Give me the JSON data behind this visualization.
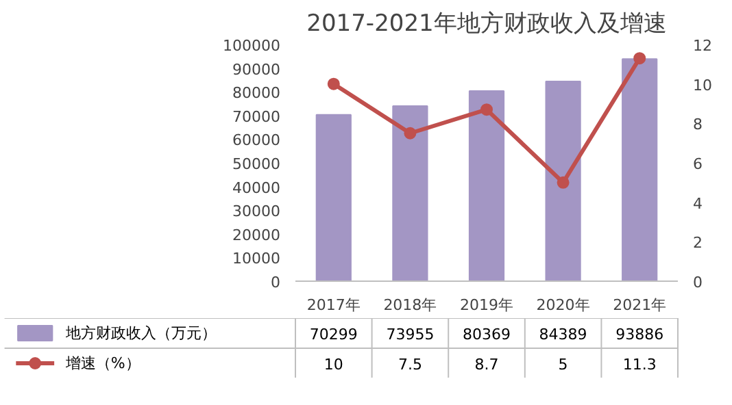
{
  "chart_data": {
    "type": "bar",
    "title": "2017-2021年地方财政收入及增速",
    "categories": [
      "2017年",
      "2018年",
      "2019年",
      "2020年",
      "2021年"
    ],
    "series": [
      {
        "name": "地方财政收入（万元）",
        "color": "#a396c4",
        "values": [
          70299,
          73955,
          80369,
          84389,
          93886
        ]
      },
      {
        "name": "增速（%）",
        "type": "line",
        "axis": "y2",
        "color": "#c0504d",
        "values": [
          10,
          7.5,
          8.7,
          5,
          11.3
        ]
      }
    ],
    "ylim": [
      0,
      100000
    ],
    "yticks": [
      0,
      10000,
      20000,
      30000,
      40000,
      50000,
      60000,
      70000,
      80000,
      90000,
      100000
    ],
    "y2lim": [
      0,
      12
    ],
    "y2ticks": [
      0,
      2,
      4,
      6,
      8,
      10,
      12
    ],
    "marker": "circle",
    "line_style": "solid",
    "data_labels": true,
    "legend": "bottom",
    "grid": false
  }
}
